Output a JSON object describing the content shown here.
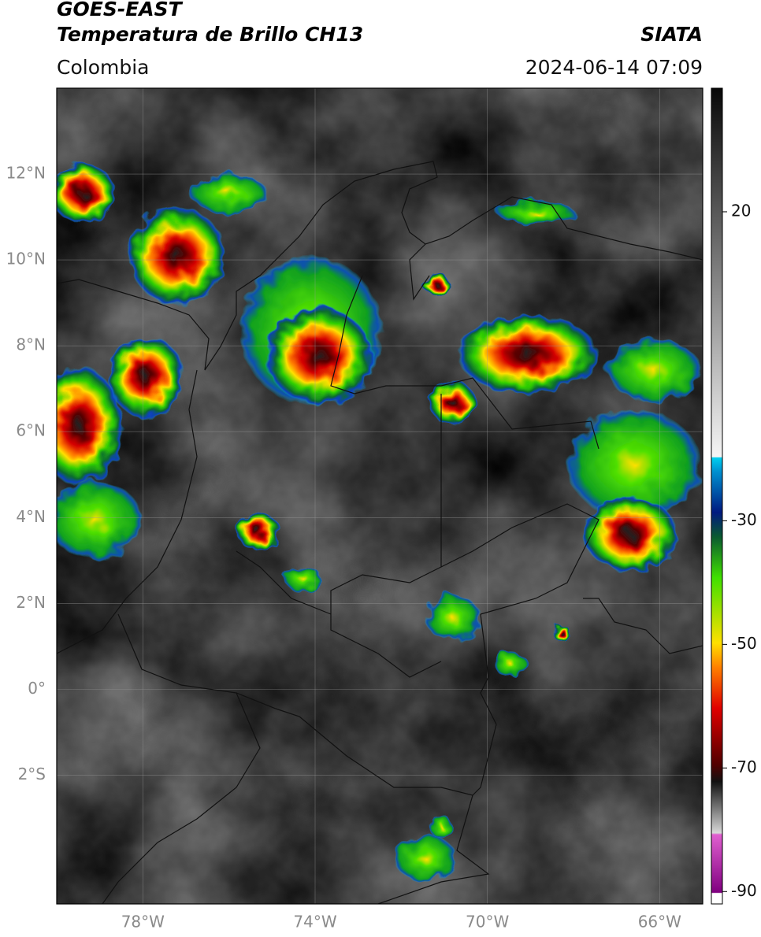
{
  "header": {
    "title": "GOES-EAST",
    "subtitle": "Temperatura de Brillo CH13",
    "source": "SIATA",
    "region": "Colombia",
    "timestamp": "2024-06-14 07:09"
  },
  "map": {
    "xlim": [
      -80,
      -65
    ],
    "xticks": [
      {
        "value": -78,
        "label": "78°W"
      },
      {
        "value": -74,
        "label": "74°W"
      },
      {
        "value": -70,
        "label": "70°W"
      },
      {
        "value": -66,
        "label": "66°W"
      }
    ],
    "ylim": [
      -5,
      14
    ],
    "yticks": [
      {
        "value": 12,
        "label": "12°N"
      },
      {
        "value": 10,
        "label": "10°N"
      },
      {
        "value": 8,
        "label": "8°N"
      },
      {
        "value": 6,
        "label": "6°N"
      },
      {
        "value": 4,
        "label": "4°N"
      },
      {
        "value": 2,
        "label": "2°N"
      },
      {
        "value": 0,
        "label": "0°"
      },
      {
        "value": -2,
        "label": "2°S"
      }
    ],
    "grid": true
  },
  "colorbar": {
    "clim": [
      -92,
      40
    ],
    "ticks": [
      20,
      -30,
      -50,
      -70,
      -90
    ]
  }
}
